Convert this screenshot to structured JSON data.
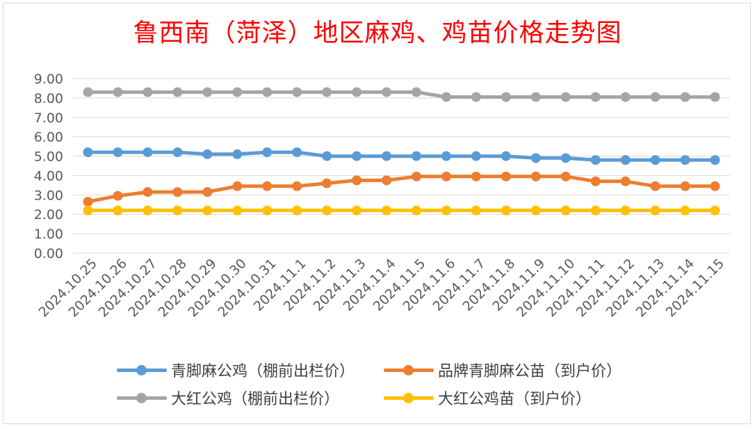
{
  "chart_data": {
    "type": "line",
    "title": "鲁西南（菏泽）地区麻鸡、鸡苗价格走势图",
    "categories": [
      "2024.10.25",
      "2024.10.26",
      "2024.10.27",
      "2024.10.28",
      "2024.10.29",
      "2024.10.30",
      "2024.10.31",
      "2024.11.1",
      "2024.11.2",
      "2024.11.3",
      "2024.11.4",
      "2024.11.5",
      "2024.11.6",
      "2024.11.7",
      "2024.11.8",
      "2024.11.9",
      "2024.11.10",
      "2024.11.11",
      "2024.11.12",
      "2024.11.13",
      "2024.11.14",
      "2024.11.15"
    ],
    "ylim": [
      0,
      9
    ],
    "yticks": [
      "0.00",
      "1.00",
      "2.00",
      "3.00",
      "4.00",
      "5.00",
      "6.00",
      "7.00",
      "8.00",
      "9.00"
    ],
    "grid": true,
    "legend_position": "bottom",
    "series": [
      {
        "name": "青脚麻公鸡（棚前出栏价）",
        "color": "#5b9bd5",
        "values": [
          5.2,
          5.2,
          5.2,
          5.2,
          5.1,
          5.1,
          5.2,
          5.2,
          5.0,
          5.0,
          5.0,
          5.0,
          5.0,
          5.0,
          5.0,
          4.9,
          4.9,
          4.8,
          4.8,
          4.8,
          4.8,
          4.8
        ]
      },
      {
        "name": "品牌青脚麻公苗（到户价）",
        "color": "#ed7d31",
        "values": [
          2.65,
          2.95,
          3.15,
          3.15,
          3.15,
          3.45,
          3.45,
          3.45,
          3.6,
          3.75,
          3.75,
          3.95,
          3.95,
          3.95,
          3.95,
          3.95,
          3.95,
          3.7,
          3.7,
          3.45,
          3.45,
          3.45
        ]
      },
      {
        "name": "大红公鸡（棚前出栏价）",
        "color": "#a5a5a5",
        "values": [
          8.3,
          8.3,
          8.3,
          8.3,
          8.3,
          8.3,
          8.3,
          8.3,
          8.3,
          8.3,
          8.3,
          8.3,
          8.05,
          8.05,
          8.05,
          8.05,
          8.05,
          8.05,
          8.05,
          8.05,
          8.05,
          8.05
        ]
      },
      {
        "name": "大红公鸡苗（到户价）",
        "color": "#ffc000",
        "values": [
          2.2,
          2.2,
          2.2,
          2.2,
          2.2,
          2.2,
          2.2,
          2.2,
          2.2,
          2.2,
          2.2,
          2.2,
          2.2,
          2.2,
          2.2,
          2.2,
          2.2,
          2.2,
          2.2,
          2.2,
          2.2,
          2.2
        ]
      }
    ]
  }
}
